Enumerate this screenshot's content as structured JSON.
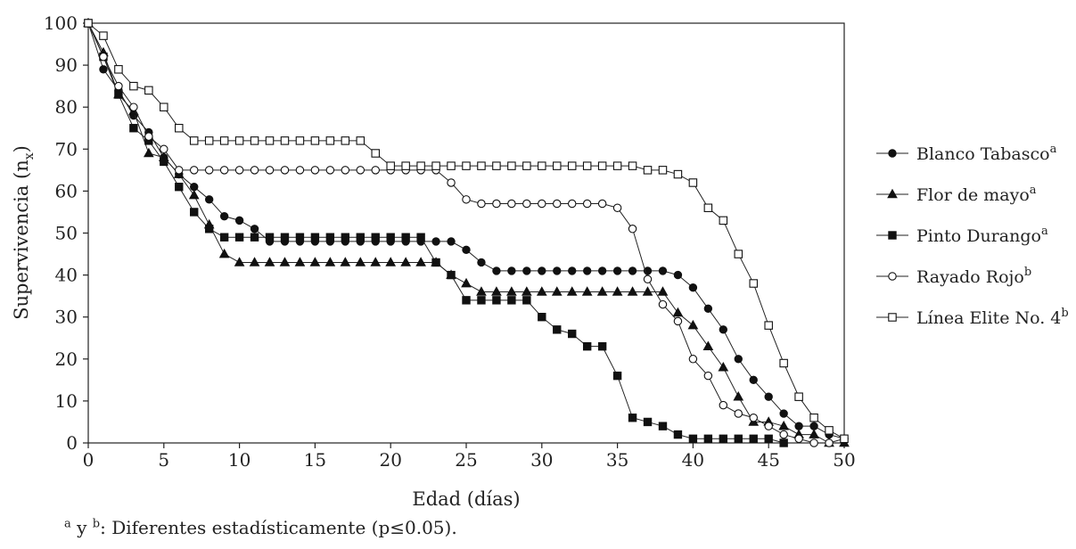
{
  "chart_data": {
    "type": "line",
    "title": "",
    "xlabel": "Edad (días)",
    "ylabel": "Supervivencia (n",
    "ylabel_sub": "x",
    "ylabel_close": ")",
    "xlim": [
      0,
      50
    ],
    "ylim": [
      0,
      100
    ],
    "xticks": [
      0,
      5,
      10,
      15,
      20,
      25,
      30,
      35,
      40,
      45,
      50
    ],
    "yticks": [
      0,
      10,
      20,
      30,
      40,
      50,
      60,
      70,
      80,
      90,
      100
    ],
    "grid": false,
    "legend_position": "right",
    "series": [
      {
        "name": "Blanco Tabasco",
        "sup": "a",
        "marker": "filled-circle",
        "x": [
          0,
          1,
          2,
          3,
          4,
          5,
          6,
          7,
          8,
          9,
          10,
          11,
          12,
          13,
          14,
          15,
          16,
          17,
          18,
          19,
          20,
          21,
          22,
          23,
          24,
          25,
          26,
          27,
          28,
          29,
          30,
          31,
          32,
          33,
          34,
          35,
          36,
          37,
          38,
          39,
          40,
          41,
          42,
          43,
          44,
          45,
          46,
          47,
          48,
          49,
          50
        ],
        "y": [
          100,
          89,
          84,
          78,
          74,
          68,
          64,
          61,
          58,
          54,
          53,
          51,
          48,
          48,
          48,
          48,
          48,
          48,
          48,
          48,
          48,
          48,
          48,
          48,
          48,
          46,
          43,
          41,
          41,
          41,
          41,
          41,
          41,
          41,
          41,
          41,
          41,
          41,
          41,
          40,
          37,
          32,
          27,
          20,
          15,
          11,
          7,
          4,
          4,
          2,
          1
        ]
      },
      {
        "name": "Flor de mayo",
        "sup": "a",
        "marker": "filled-triangle",
        "x": [
          0,
          1,
          2,
          3,
          4,
          5,
          6,
          7,
          8,
          9,
          10,
          11,
          12,
          13,
          14,
          15,
          16,
          17,
          18,
          19,
          20,
          21,
          22,
          23,
          24,
          25,
          26,
          27,
          28,
          29,
          30,
          31,
          32,
          33,
          34,
          35,
          36,
          37,
          38,
          39,
          40,
          41,
          42,
          43,
          44,
          45,
          46,
          47,
          48,
          49,
          50
        ],
        "y": [
          100,
          93,
          83,
          79,
          69,
          68,
          64,
          59,
          52,
          45,
          43,
          43,
          43,
          43,
          43,
          43,
          43,
          43,
          43,
          43,
          43,
          43,
          43,
          43,
          40,
          38,
          36,
          36,
          36,
          36,
          36,
          36,
          36,
          36,
          36,
          36,
          36,
          36,
          36,
          31,
          28,
          23,
          18,
          11,
          5,
          5,
          4,
          2,
          2,
          0,
          0
        ]
      },
      {
        "name": "Pinto Durango",
        "sup": "a",
        "marker": "filled-square",
        "x": [
          0,
          1,
          2,
          3,
          4,
          5,
          6,
          7,
          8,
          9,
          10,
          11,
          12,
          13,
          14,
          15,
          16,
          17,
          18,
          19,
          20,
          21,
          22,
          23,
          24,
          25,
          26,
          27,
          28,
          29,
          30,
          31,
          32,
          33,
          34,
          35,
          36,
          37,
          38,
          39,
          40,
          41,
          42,
          43,
          44,
          45,
          46
        ],
        "y": [
          100,
          92,
          83,
          75,
          72,
          67,
          61,
          55,
          51,
          49,
          49,
          49,
          49,
          49,
          49,
          49,
          49,
          49,
          49,
          49,
          49,
          49,
          49,
          43,
          40,
          34,
          34,
          34,
          34,
          34,
          30,
          27,
          26,
          23,
          23,
          16,
          6,
          5,
          4,
          2,
          1,
          1,
          1,
          1,
          1,
          1,
          0
        ]
      },
      {
        "name": "Rayado Rojo",
        "sup": "b",
        "marker": "open-circle",
        "x": [
          0,
          1,
          2,
          3,
          4,
          5,
          6,
          7,
          8,
          9,
          10,
          11,
          12,
          13,
          14,
          15,
          16,
          17,
          18,
          19,
          20,
          21,
          22,
          23,
          24,
          25,
          26,
          27,
          28,
          29,
          30,
          31,
          32,
          33,
          34,
          35,
          36,
          37,
          38,
          39,
          40,
          41,
          42,
          43,
          44,
          45,
          46,
          47,
          48,
          49,
          50
        ],
        "y": [
          100,
          92,
          85,
          80,
          73,
          70,
          65,
          65,
          65,
          65,
          65,
          65,
          65,
          65,
          65,
          65,
          65,
          65,
          65,
          65,
          65,
          65,
          65,
          65,
          62,
          58,
          57,
          57,
          57,
          57,
          57,
          57,
          57,
          57,
          57,
          56,
          51,
          39,
          33,
          29,
          20,
          16,
          9,
          7,
          6,
          4,
          2,
          1,
          0,
          0,
          1
        ]
      },
      {
        "name": "Línea Elite No. 4",
        "sup": "b",
        "marker": "open-square",
        "x": [
          0,
          1,
          2,
          3,
          4,
          5,
          6,
          7,
          8,
          9,
          10,
          11,
          12,
          13,
          14,
          15,
          16,
          17,
          18,
          19,
          20,
          21,
          22,
          23,
          24,
          25,
          26,
          27,
          28,
          29,
          30,
          31,
          32,
          33,
          34,
          35,
          36,
          37,
          38,
          39,
          40,
          41,
          42,
          43,
          44,
          45,
          46,
          47,
          48,
          49,
          50
        ],
        "y": [
          100,
          97,
          89,
          85,
          84,
          80,
          75,
          72,
          72,
          72,
          72,
          72,
          72,
          72,
          72,
          72,
          72,
          72,
          72,
          69,
          66,
          66,
          66,
          66,
          66,
          66,
          66,
          66,
          66,
          66,
          66,
          66,
          66,
          66,
          66,
          66,
          66,
          65,
          65,
          64,
          62,
          56,
          53,
          45,
          38,
          28,
          19,
          11,
          6,
          3,
          1
        ]
      }
    ]
  },
  "footnote": {
    "sup_a": "a",
    "y_text": " y ",
    "sup_b": "b",
    "text": ": Diferentes estadísticamente (p≤0.05)."
  }
}
